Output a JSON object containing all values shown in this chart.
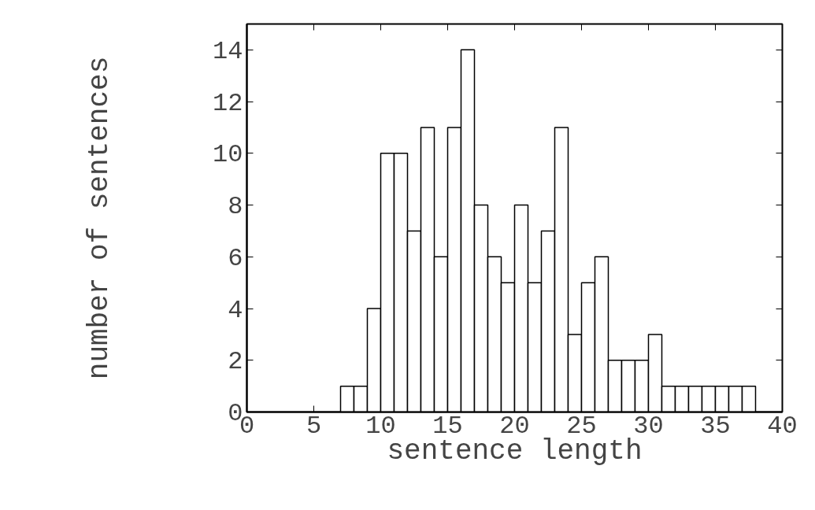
{
  "chart_data": {
    "type": "histogram",
    "xlabel": "sentence length",
    "ylabel": "number of sentences",
    "bins": [
      7,
      8,
      9,
      10,
      11,
      12,
      13,
      14,
      15,
      16,
      17,
      18,
      19,
      20,
      21,
      22,
      23,
      24,
      25,
      26,
      27,
      28,
      29,
      30,
      31,
      32,
      33,
      34,
      35,
      36,
      37,
      38
    ],
    "values": [
      1,
      1,
      4,
      10,
      10,
      7,
      11,
      6,
      11,
      14,
      8,
      6,
      5,
      8,
      5,
      7,
      11,
      3,
      5,
      6,
      2,
      2,
      2,
      3,
      1,
      1,
      1,
      1,
      1,
      1,
      1
    ],
    "color": "#ffffff",
    "xlim": [
      0,
      40
    ],
    "xticks": [
      0,
      5,
      10,
      15,
      20,
      25,
      30,
      35,
      40
    ],
    "ylim": [
      0,
      15
    ],
    "yticks": [
      0,
      2,
      4,
      6,
      8,
      10,
      12,
      14
    ],
    "grid": false
  }
}
